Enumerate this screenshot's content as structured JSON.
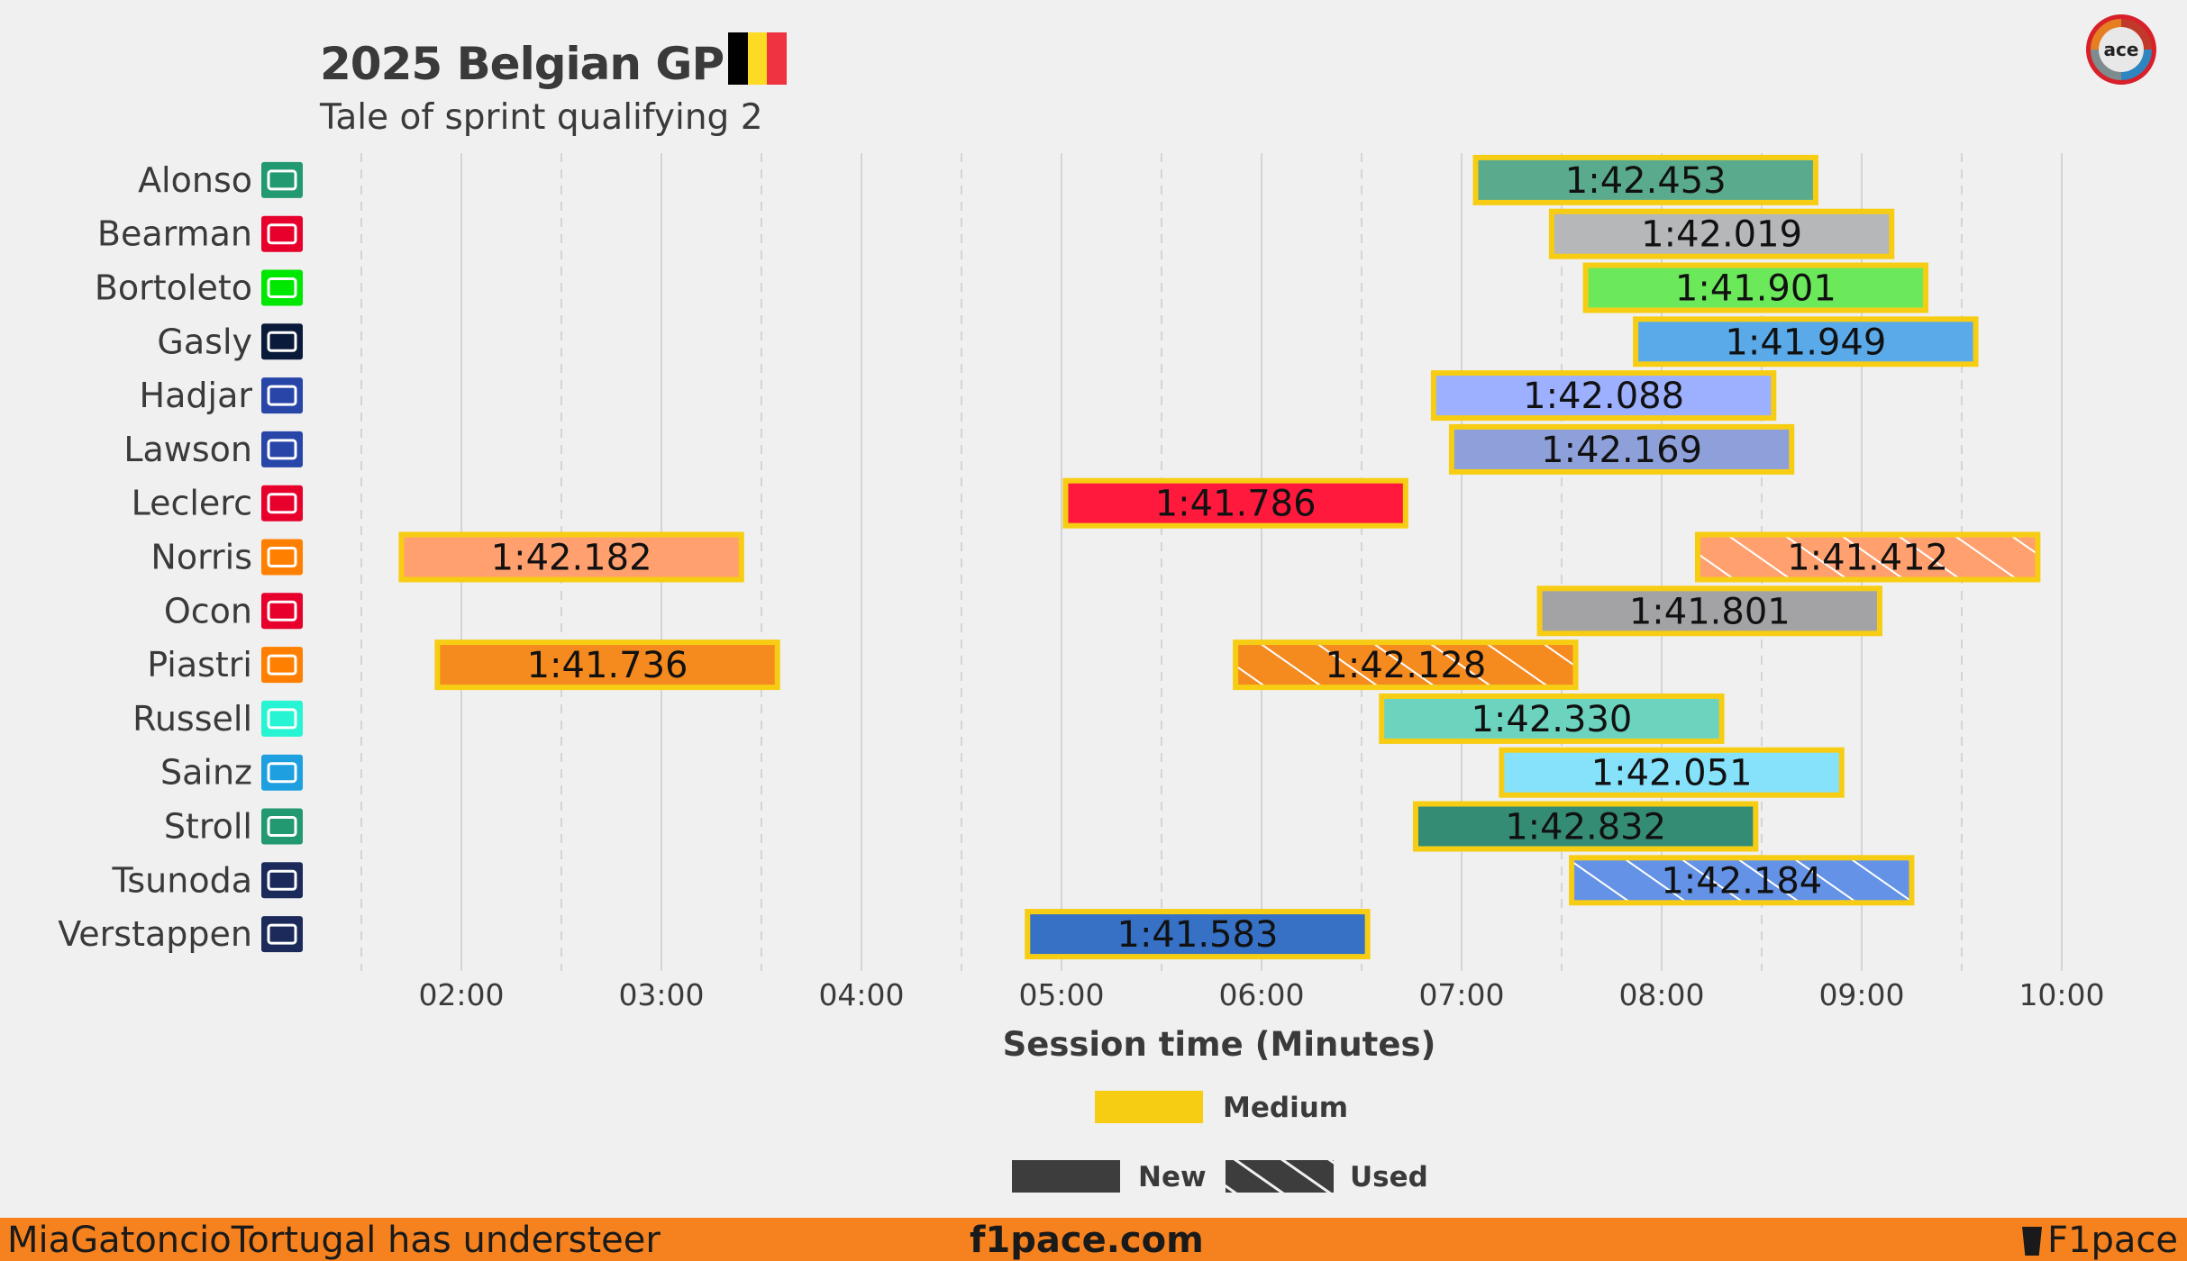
{
  "header": {
    "title": "2025 Belgian GP",
    "subtitle": "Tale of sprint qualifying 2",
    "flag_colors": [
      "#000000",
      "#fdda24",
      "#ef3340"
    ]
  },
  "logo_label": "ace",
  "footer": {
    "left": "MiaGatoncioTortugal has understeer",
    "center": "f1pace.com",
    "right": "F1pace",
    "right_icon": "cup-icon"
  },
  "chart_data": {
    "type": "bar",
    "orientation": "horizontal-gantt",
    "xlabel": "Session time (Minutes)",
    "xlim": [
      1.5,
      10.15
    ],
    "x_ticks": [
      2,
      3,
      4,
      5,
      6,
      7,
      8,
      9,
      10
    ],
    "x_tick_labels": [
      "02:00",
      "03:00",
      "04:00",
      "05:00",
      "06:00",
      "07:00",
      "08:00",
      "09:00",
      "10:00"
    ],
    "grid": true,
    "drivers": [
      {
        "name": "Alonso",
        "team_icon": "aston-martin-icon",
        "team_color": "#229971"
      },
      {
        "name": "Bearman",
        "team_icon": "haas-icon",
        "team_color": "#e6002b"
      },
      {
        "name": "Bortoleto",
        "team_icon": "sauber-icon",
        "team_color": "#00e701"
      },
      {
        "name": "Gasly",
        "team_icon": "alpine-icon",
        "team_color": "#0a1a3a"
      },
      {
        "name": "Hadjar",
        "team_icon": "racing-bulls-icon",
        "team_color": "#2845a8"
      },
      {
        "name": "Lawson",
        "team_icon": "racing-bulls-icon",
        "team_color": "#2845a8"
      },
      {
        "name": "Leclerc",
        "team_icon": "ferrari-icon",
        "team_color": "#e8002d"
      },
      {
        "name": "Norris",
        "team_icon": "mclaren-icon",
        "team_color": "#ff8000"
      },
      {
        "name": "Ocon",
        "team_icon": "haas-icon",
        "team_color": "#e6002b"
      },
      {
        "name": "Piastri",
        "team_icon": "mclaren-icon",
        "team_color": "#ff8000"
      },
      {
        "name": "Russell",
        "team_icon": "mercedes-icon",
        "team_color": "#27f4d2"
      },
      {
        "name": "Sainz",
        "team_icon": "williams-icon",
        "team_color": "#1e9fe0"
      },
      {
        "name": "Stroll",
        "team_icon": "aston-martin-icon",
        "team_color": "#229971"
      },
      {
        "name": "Tsunoda",
        "team_icon": "red-bull-icon",
        "team_color": "#1b2a5a"
      },
      {
        "name": "Verstappen",
        "team_icon": "red-bull-icon",
        "team_color": "#1b2a5a"
      }
    ],
    "stints": [
      {
        "driver": "Alonso",
        "start": 7.07,
        "end": 8.77,
        "lap_time": "1:42.453",
        "compound": "Medium",
        "tyre_state": "New",
        "color": "#5aaa8e"
      },
      {
        "driver": "Bearman",
        "start": 7.45,
        "end": 9.15,
        "lap_time": "1:42.019",
        "compound": "Medium",
        "tyre_state": "New",
        "color": "#b6b7b9"
      },
      {
        "driver": "Bortoleto",
        "start": 7.62,
        "end": 9.32,
        "lap_time": "1:41.901",
        "compound": "Medium",
        "tyre_state": "New",
        "color": "#6be95a"
      },
      {
        "driver": "Gasly",
        "start": 7.87,
        "end": 9.57,
        "lap_time": "1:41.949",
        "compound": "Medium",
        "tyre_state": "New",
        "color": "#5aaae9"
      },
      {
        "driver": "Hadjar",
        "start": 6.86,
        "end": 8.56,
        "lap_time": "1:42.088",
        "compound": "Medium",
        "tyre_state": "New",
        "color": "#9cb0ff"
      },
      {
        "driver": "Lawson",
        "start": 6.95,
        "end": 8.65,
        "lap_time": "1:42.169",
        "compound": "Medium",
        "tyre_state": "New",
        "color": "#8ea0da"
      },
      {
        "driver": "Leclerc",
        "start": 5.02,
        "end": 6.72,
        "lap_time": "1:41.786",
        "compound": "Medium",
        "tyre_state": "New",
        "color": "#ff1a3d"
      },
      {
        "driver": "Norris",
        "start": 1.7,
        "end": 3.4,
        "lap_time": "1:42.182",
        "compound": "Medium",
        "tyre_state": "New",
        "color": "#ffa06e"
      },
      {
        "driver": "Norris",
        "start": 8.18,
        "end": 9.88,
        "lap_time": "1:41.412",
        "compound": "Medium",
        "tyre_state": "Used",
        "color": "#ffa06e"
      },
      {
        "driver": "Ocon",
        "start": 7.39,
        "end": 9.09,
        "lap_time": "1:41.801",
        "compound": "Medium",
        "tyre_state": "New",
        "color": "#a3a3a5"
      },
      {
        "driver": "Piastri",
        "start": 1.88,
        "end": 3.58,
        "lap_time": "1:41.736",
        "compound": "Medium",
        "tyre_state": "New",
        "color": "#f58a1f"
      },
      {
        "driver": "Piastri",
        "start": 5.87,
        "end": 7.57,
        "lap_time": "1:42.128",
        "compound": "Medium",
        "tyre_state": "Used",
        "color": "#f58a1f"
      },
      {
        "driver": "Russell",
        "start": 6.6,
        "end": 8.3,
        "lap_time": "1:42.330",
        "compound": "Medium",
        "tyre_state": "New",
        "color": "#6cd3bf"
      },
      {
        "driver": "Sainz",
        "start": 7.2,
        "end": 8.9,
        "lap_time": "1:42.051",
        "compound": "Medium",
        "tyre_state": "New",
        "color": "#86e1fb"
      },
      {
        "driver": "Stroll",
        "start": 6.77,
        "end": 8.47,
        "lap_time": "1:42.832",
        "compound": "Medium",
        "tyre_state": "New",
        "color": "#358c75"
      },
      {
        "driver": "Tsunoda",
        "start": 7.55,
        "end": 9.25,
        "lap_time": "1:42.184",
        "compound": "Medium",
        "tyre_state": "Used",
        "color": "#6492e6"
      },
      {
        "driver": "Verstappen",
        "start": 4.83,
        "end": 6.53,
        "lap_time": "1:41.583",
        "compound": "Medium",
        "tyre_state": "New",
        "color": "#3671c6"
      }
    ],
    "legend": {
      "placement": "bottom-center",
      "compounds": [
        {
          "label": "Medium",
          "color": "#f7cd14"
        }
      ],
      "tyre_states": [
        {
          "label": "New",
          "pattern": "solid"
        },
        {
          "label": "Used",
          "pattern": "hatched"
        }
      ]
    },
    "compound_edge_color": "#f7cd14"
  }
}
